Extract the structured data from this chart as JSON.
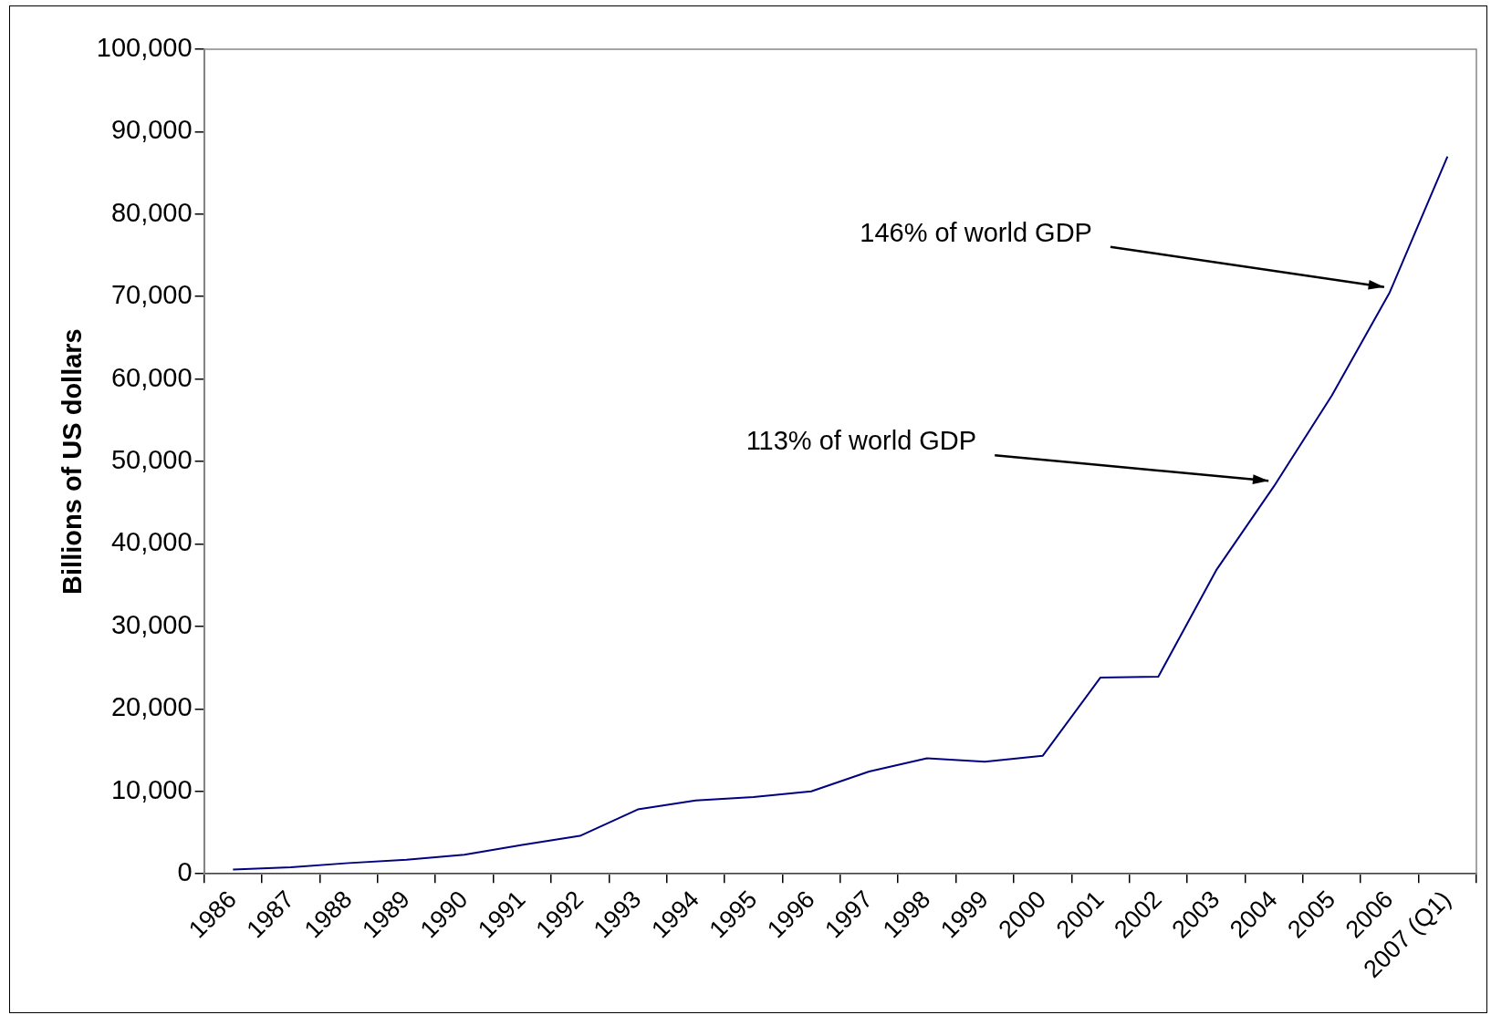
{
  "chart_data": {
    "type": "line",
    "ylabel": "Billions of US dollars",
    "categories": [
      "1986",
      "1987",
      "1988",
      "1989",
      "1990",
      "1991",
      "1992",
      "1993",
      "1994",
      "1995",
      "1996",
      "1997",
      "1998",
      "1999",
      "2000",
      "2001",
      "2002",
      "2003",
      "2004",
      "2005",
      "2006",
      "2007 (Q1)"
    ],
    "series": [
      {
        "color": "#000080",
        "values": [
          500,
          800,
          1300,
          1700,
          2300,
          3500,
          4600,
          7800,
          8900,
          9300,
          10000,
          12400,
          14000,
          13600,
          14300,
          23800,
          23900,
          36800,
          47000,
          58000,
          70500,
          87000
        ]
      }
    ],
    "ylim": [
      0,
      100000
    ],
    "yticks": [
      0,
      {
        "value": 10000,
        "label": "10,000"
      },
      {
        "value": 20000,
        "label": "20,000"
      },
      {
        "value": 30000,
        "label": "30,000"
      },
      {
        "value": 40000,
        "label": "40,000"
      },
      {
        "value": 50000,
        "label": "50,000"
      },
      {
        "value": 60000,
        "label": "60,000"
      },
      {
        "value": 70000,
        "label": "70,000"
      },
      {
        "value": 80000,
        "label": "80,000"
      },
      {
        "value": 90000,
        "label": "90,000"
      },
      {
        "value": 100000,
        "label": "100,000"
      }
    ],
    "grid": false,
    "legend": false,
    "marker": "none",
    "line_style": "solid",
    "annotations": [
      {
        "text": "146% of world GDP",
        "x": "2006",
        "y": 70500
      },
      {
        "text": "113% of world GDP",
        "x": "2004",
        "y": 47000
      }
    ]
  }
}
